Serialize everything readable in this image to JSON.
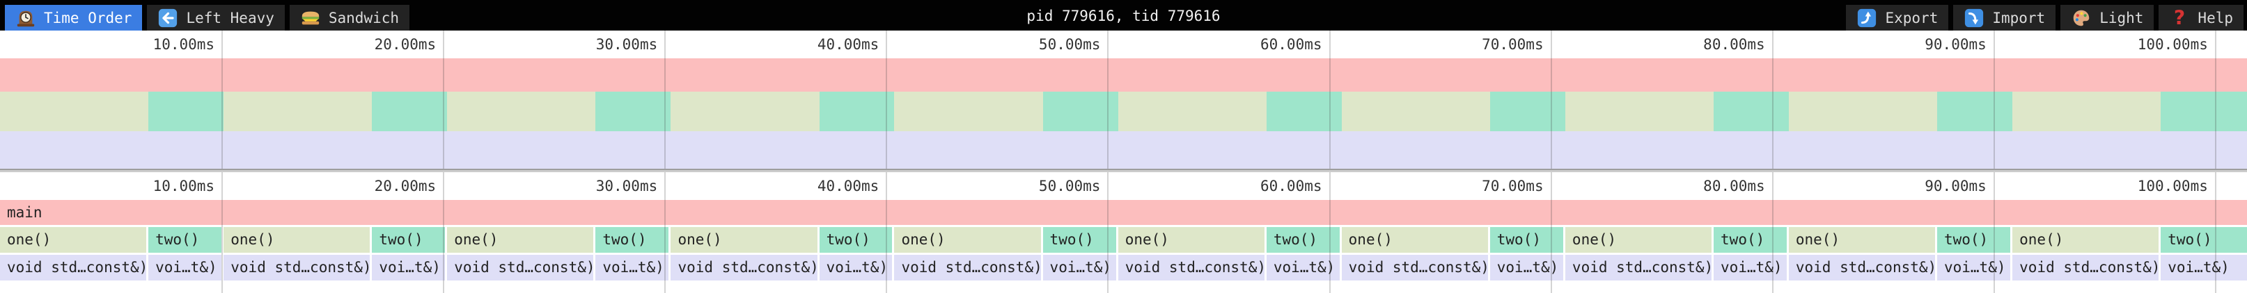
{
  "toolbar": {
    "tabs": [
      {
        "label": "Time Order",
        "icon": "clock-icon",
        "active": true
      },
      {
        "label": "Left Heavy",
        "icon": "left-arrow-icon",
        "active": false
      },
      {
        "label": "Sandwich",
        "icon": "sandwich-icon",
        "active": false
      }
    ],
    "title": "pid 779616, tid 779616",
    "actions": [
      {
        "label": "Export",
        "icon": "export-icon"
      },
      {
        "label": "Import",
        "icon": "import-icon"
      },
      {
        "label": "Light",
        "icon": "palette-icon"
      },
      {
        "label": "Help",
        "icon": "help-icon"
      }
    ]
  },
  "palette": {
    "main": "#fcbebe",
    "one": "#dee7c9",
    "two": "#9ee5cb",
    "void": "#dfdff7",
    "accent_blue": "#3b7de2",
    "gridline": "#c8c8c8",
    "toolbar_bg": "#020202",
    "tab_bg": "#232323"
  },
  "timeline": {
    "unit": "ms",
    "total_ms": 101.45,
    "ticks": [
      {
        "ms": 10,
        "label": "10.00ms"
      },
      {
        "ms": 20,
        "label": "20.00ms"
      },
      {
        "ms": 30,
        "label": "30.00ms"
      },
      {
        "ms": 40,
        "label": "40.00ms"
      },
      {
        "ms": 50,
        "label": "50.00ms"
      },
      {
        "ms": 60,
        "label": "60.00ms"
      },
      {
        "ms": 70,
        "label": "70.00ms"
      },
      {
        "ms": 80,
        "label": "80.00ms"
      },
      {
        "ms": 90,
        "label": "90.00ms"
      },
      {
        "ms": 100,
        "label": "100.00ms"
      }
    ]
  },
  "flamegraph": {
    "rows": [
      {
        "depth": 0,
        "frames": [
          {
            "label": "main",
            "color": "main",
            "start_ms": 0.0,
            "end_ms": 101.45
          }
        ]
      },
      {
        "depth": 1,
        "frames": [
          {
            "label": "one()",
            "color": "one",
            "start_ms": 0.0,
            "end_ms": 6.7
          },
          {
            "label": "two()",
            "color": "two",
            "start_ms": 6.7,
            "end_ms": 10.1
          },
          {
            "label": "one()",
            "color": "one",
            "start_ms": 10.1,
            "end_ms": 16.8
          },
          {
            "label": "two()",
            "color": "two",
            "start_ms": 16.8,
            "end_ms": 20.19
          },
          {
            "label": "one()",
            "color": "one",
            "start_ms": 20.19,
            "end_ms": 26.89
          },
          {
            "label": "two()",
            "color": "two",
            "start_ms": 26.89,
            "end_ms": 30.29
          },
          {
            "label": "one()",
            "color": "one",
            "start_ms": 30.29,
            "end_ms": 36.99
          },
          {
            "label": "two()",
            "color": "two",
            "start_ms": 36.99,
            "end_ms": 40.38
          },
          {
            "label": "one()",
            "color": "one",
            "start_ms": 40.38,
            "end_ms": 47.08
          },
          {
            "label": "two()",
            "color": "two",
            "start_ms": 47.08,
            "end_ms": 50.48
          },
          {
            "label": "one()",
            "color": "one",
            "start_ms": 50.48,
            "end_ms": 57.18
          },
          {
            "label": "two()",
            "color": "two",
            "start_ms": 57.18,
            "end_ms": 60.57
          },
          {
            "label": "one()",
            "color": "one",
            "start_ms": 60.57,
            "end_ms": 67.27
          },
          {
            "label": "two()",
            "color": "two",
            "start_ms": 67.27,
            "end_ms": 70.67
          },
          {
            "label": "one()",
            "color": "one",
            "start_ms": 70.67,
            "end_ms": 77.37
          },
          {
            "label": "two()",
            "color": "two",
            "start_ms": 77.37,
            "end_ms": 80.76
          },
          {
            "label": "one()",
            "color": "one",
            "start_ms": 80.76,
            "end_ms": 87.46
          },
          {
            "label": "two()",
            "color": "two",
            "start_ms": 87.46,
            "end_ms": 90.86
          },
          {
            "label": "one()",
            "color": "one",
            "start_ms": 90.86,
            "end_ms": 97.56
          },
          {
            "label": "two()",
            "color": "two",
            "start_ms": 97.56,
            "end_ms": 101.45
          }
        ]
      },
      {
        "depth": 2,
        "frames": [
          {
            "label": "void std…const&)",
            "color": "void",
            "start_ms": 0.0,
            "end_ms": 6.7
          },
          {
            "label": "voi…t&)",
            "color": "void",
            "start_ms": 6.7,
            "end_ms": 10.1
          },
          {
            "label": "void std…const&)",
            "color": "void",
            "start_ms": 10.1,
            "end_ms": 16.8
          },
          {
            "label": "voi…t&)",
            "color": "void",
            "start_ms": 16.8,
            "end_ms": 20.19
          },
          {
            "label": "void std…const&)",
            "color": "void",
            "start_ms": 20.19,
            "end_ms": 26.89
          },
          {
            "label": "voi…t&)",
            "color": "void",
            "start_ms": 26.89,
            "end_ms": 30.29
          },
          {
            "label": "void std…const&)",
            "color": "void",
            "start_ms": 30.29,
            "end_ms": 36.99
          },
          {
            "label": "voi…t&)",
            "color": "void",
            "start_ms": 36.99,
            "end_ms": 40.38
          },
          {
            "label": "void std…const&)",
            "color": "void",
            "start_ms": 40.38,
            "end_ms": 47.08
          },
          {
            "label": "voi…t&)",
            "color": "void",
            "start_ms": 47.08,
            "end_ms": 50.48
          },
          {
            "label": "void std…const&)",
            "color": "void",
            "start_ms": 50.48,
            "end_ms": 57.18
          },
          {
            "label": "voi…t&)",
            "color": "void",
            "start_ms": 57.18,
            "end_ms": 60.57
          },
          {
            "label": "void std…const&)",
            "color": "void",
            "start_ms": 60.57,
            "end_ms": 67.27
          },
          {
            "label": "voi…t&)",
            "color": "void",
            "start_ms": 67.27,
            "end_ms": 70.67
          },
          {
            "label": "void std…const&)",
            "color": "void",
            "start_ms": 70.67,
            "end_ms": 77.37
          },
          {
            "label": "voi…t&)",
            "color": "void",
            "start_ms": 77.37,
            "end_ms": 80.76
          },
          {
            "label": "void std…const&)",
            "color": "void",
            "start_ms": 80.76,
            "end_ms": 87.46
          },
          {
            "label": "voi…t&)",
            "color": "void",
            "start_ms": 87.46,
            "end_ms": 90.86
          },
          {
            "label": "void std…const&)",
            "color": "void",
            "start_ms": 90.86,
            "end_ms": 97.56
          },
          {
            "label": "voi…t&)",
            "color": "void",
            "start_ms": 97.56,
            "end_ms": 101.45
          }
        ]
      }
    ]
  }
}
